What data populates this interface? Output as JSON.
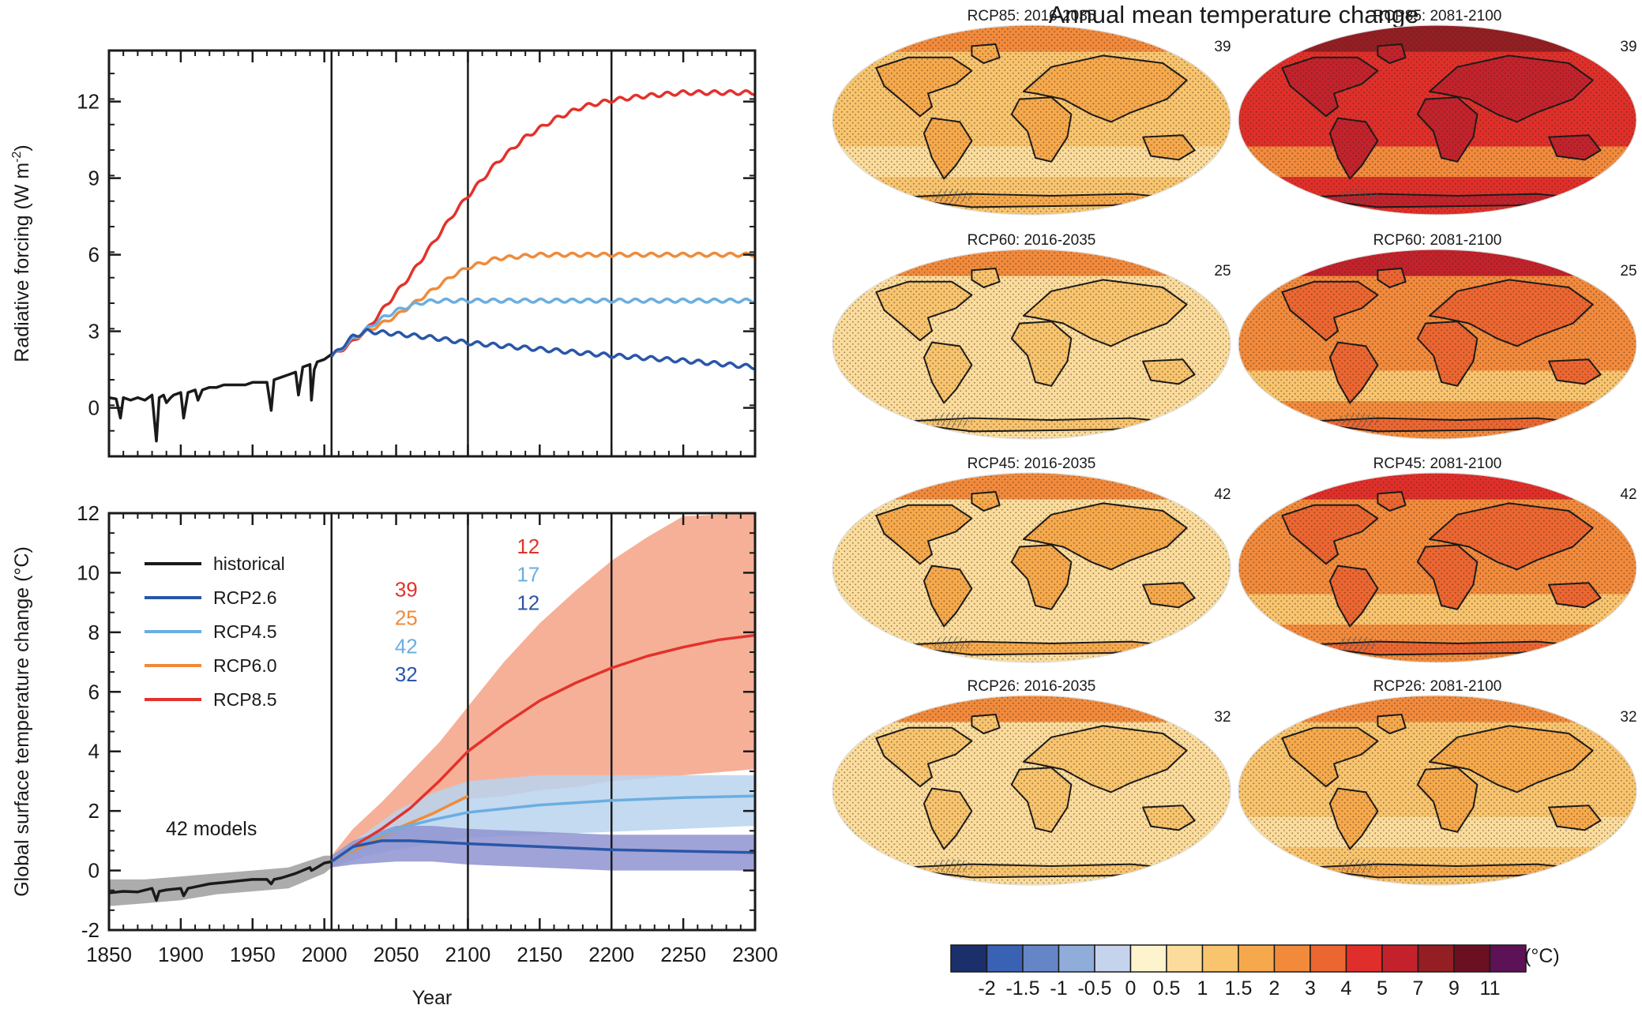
{
  "maps": {
    "title": "Annual mean temperature change",
    "panels": [
      {
        "label": "RCP85: 2016-2035",
        "count": "39",
        "level": 1.05
      },
      {
        "label": "RCP85: 2081-2100",
        "count": "39",
        "level": 4.6
      },
      {
        "label": "RCP60: 2016-2035",
        "count": "25",
        "level": 0.85
      },
      {
        "label": "RCP60: 2081-2100",
        "count": "25",
        "level": 2.6
      },
      {
        "label": "RCP45: 2016-2035",
        "count": "42",
        "level": 0.95
      },
      {
        "label": "RCP45: 2081-2100",
        "count": "42",
        "level": 2.2
      },
      {
        "label": "RCP26: 2016-2035",
        "count": "32",
        "level": 0.85
      },
      {
        "label": "RCP26: 2081-2100",
        "count": "32",
        "level": 1.0
      }
    ]
  },
  "colorbar": {
    "unit": "(°C)",
    "labels": [
      "-2",
      "-1.5",
      "-1",
      "-0.5",
      "0",
      "0.5",
      "1",
      "1.5",
      "2",
      "3",
      "4",
      "5",
      "7",
      "9",
      "11"
    ],
    "colors": [
      "#1b2f6b",
      "#3a62b4",
      "#6585c6",
      "#90acd9",
      "#c6d3ed",
      "#fdf3cd",
      "#fbdc9c",
      "#f8c46e",
      "#f6a94c",
      "#f28a3c",
      "#ec6631",
      "#e02f2a",
      "#c3222c",
      "#931e23",
      "#6b1020",
      "#5e1256"
    ]
  },
  "chart_data": [
    {
      "type": "line",
      "ylabel": "Radiative forcing (W m-2)",
      "ylabel_parts": [
        "Radiative  forcing (W m",
        "-2",
        ")"
      ],
      "xlim": [
        1850,
        2300
      ],
      "ylim": [
        -1.9,
        14
      ],
      "yticks": [
        "0",
        "3",
        "6",
        "9",
        "12"
      ],
      "ytick_values": [
        0,
        3,
        6,
        9,
        12
      ],
      "vlines": [
        2005,
        2100,
        2200
      ],
      "series": [
        {
          "key": "historical",
          "color": "#1a1a1a",
          "x": [
            1850,
            1855,
            1858,
            1860,
            1865,
            1870,
            1875,
            1880,
            1883,
            1885,
            1888,
            1890,
            1893,
            1895,
            1900,
            1902,
            1905,
            1910,
            1912,
            1915,
            1920,
            1925,
            1930,
            1935,
            1940,
            1945,
            1950,
            1955,
            1960,
            1963,
            1965,
            1970,
            1975,
            1980,
            1982,
            1985,
            1990,
            1991,
            1993,
            1995,
            2000,
            2005
          ],
          "y": [
            0.4,
            0.35,
            -0.4,
            0.4,
            0.3,
            0.4,
            0.3,
            0.5,
            -1.3,
            0.4,
            0.5,
            0.2,
            0.4,
            0.5,
            0.6,
            -0.4,
            0.6,
            0.7,
            0.3,
            0.7,
            0.8,
            0.8,
            0.9,
            0.9,
            0.9,
            0.9,
            1.0,
            1.0,
            1.0,
            -0.1,
            1.1,
            1.2,
            1.3,
            1.4,
            0.5,
            1.6,
            1.7,
            0.3,
            1.5,
            1.8,
            1.9,
            2.1
          ]
        },
        {
          "key": "rcp85",
          "color": "#e2322b",
          "x": [
            2005,
            2020,
            2030,
            2040,
            2050,
            2060,
            2070,
            2080,
            2090,
            2100,
            2120,
            2140,
            2160,
            2180,
            2200,
            2220,
            2250,
            2300
          ],
          "y": [
            2.0,
            2.6,
            3.1,
            3.8,
            4.5,
            5.2,
            6.0,
            6.8,
            7.6,
            8.3,
            9.6,
            10.6,
            11.3,
            11.8,
            12.05,
            12.2,
            12.35,
            12.35
          ]
        },
        {
          "key": "rcp60",
          "color": "#ef8b3a",
          "x": [
            2005,
            2020,
            2030,
            2040,
            2050,
            2060,
            2070,
            2080,
            2090,
            2100,
            2120,
            2150,
            2300
          ],
          "y": [
            2.0,
            2.7,
            3.0,
            3.3,
            3.6,
            4.0,
            4.4,
            4.8,
            5.2,
            5.5,
            5.85,
            6.0,
            6.0
          ]
        },
        {
          "key": "rcp45",
          "color": "#6baee0",
          "x": [
            2005,
            2020,
            2030,
            2040,
            2050,
            2060,
            2070,
            2080,
            2100,
            2150,
            2300
          ],
          "y": [
            2.0,
            2.7,
            3.1,
            3.5,
            3.8,
            4.0,
            4.15,
            4.2,
            4.2,
            4.2,
            4.2
          ]
        },
        {
          "key": "rcp26",
          "color": "#2a56a8",
          "x": [
            2005,
            2020,
            2030,
            2040,
            2050,
            2075,
            2100,
            2150,
            2200,
            2250,
            2300
          ],
          "y": [
            2.0,
            2.8,
            3.0,
            2.95,
            2.9,
            2.75,
            2.55,
            2.3,
            2.05,
            1.85,
            1.6
          ]
        }
      ]
    },
    {
      "type": "line",
      "xlabel": "Year",
      "ylabel": "Global surface temperature change (°C)",
      "xlim": [
        1850,
        2300
      ],
      "ylim": [
        -2,
        12
      ],
      "xticks": [
        "1850",
        "1900",
        "1950",
        "2000",
        "2050",
        "2100",
        "2150",
        "2200",
        "2250",
        "2300"
      ],
      "xtick_values": [
        1850,
        1900,
        1950,
        2000,
        2050,
        2100,
        2150,
        2200,
        2250,
        2300
      ],
      "yticks": [
        "-2",
        "0",
        "2",
        "4",
        "6",
        "8",
        "10",
        "12"
      ],
      "ytick_values": [
        -2,
        0,
        2,
        4,
        6,
        8,
        10,
        12
      ],
      "vlines": [
        2005,
        2100,
        2200
      ],
      "annotation": "42 models",
      "model_counts": [
        {
          "text": "39",
          "color": "#e2322b",
          "x": 2057,
          "y": 9.2
        },
        {
          "text": "25",
          "color": "#ef8b3a",
          "x": 2057,
          "y": 8.25
        },
        {
          "text": "42",
          "color": "#6baee0",
          "x": 2057,
          "y": 7.3
        },
        {
          "text": "32",
          "color": "#2a56a8",
          "x": 2057,
          "y": 6.35
        },
        {
          "text": "12",
          "color": "#e2322b",
          "x": 2142,
          "y": 10.65
        },
        {
          "text": "17",
          "color": "#6baee0",
          "x": 2142,
          "y": 9.7
        },
        {
          "text": "12",
          "color": "#2a56a8",
          "x": 2142,
          "y": 8.75
        }
      ],
      "legend": {
        "placement": "top-left",
        "entries": [
          {
            "key": "historical",
            "label": "historical",
            "color": "#1a1a1a"
          },
          {
            "key": "rcp26",
            "label": "RCP2.6",
            "color": "#2a56a8"
          },
          {
            "key": "rcp45",
            "label": "RCP4.5",
            "color": "#6baee0"
          },
          {
            "key": "rcp60",
            "label": "RCP6.0",
            "color": "#ef8b3a"
          },
          {
            "key": "rcp85",
            "label": "RCP8.5",
            "color": "#e2322b"
          }
        ]
      },
      "bands": [
        {
          "key": "rcp85",
          "color": "#f4a286",
          "x": [
            2005,
            2020,
            2040,
            2060,
            2080,
            2100,
            2125,
            2150,
            2175,
            2200,
            2225,
            2250,
            2300
          ],
          "lower": [
            0.1,
            0.5,
            1.0,
            1.5,
            2.0,
            2.4,
            2.5,
            2.7,
            2.8,
            3.0,
            3.1,
            3.2,
            3.4
          ],
          "upper": [
            0.5,
            1.4,
            2.3,
            3.3,
            4.3,
            5.5,
            7.0,
            8.3,
            9.4,
            10.4,
            11.2,
            11.9,
            12.0
          ]
        },
        {
          "key": "rcp45",
          "color": "#b8d3ee",
          "x": [
            2005,
            2030,
            2050,
            2075,
            2100,
            2150,
            2200,
            2250,
            2300
          ],
          "lower": [
            0.1,
            0.5,
            0.7,
            0.9,
            1.1,
            1.2,
            1.3,
            1.4,
            1.5
          ],
          "upper": [
            0.5,
            1.3,
            2.0,
            2.6,
            3.0,
            3.2,
            3.2,
            3.2,
            3.2
          ]
        },
        {
          "key": "rcp26",
          "color": "#8f93d0",
          "x": [
            2005,
            2020,
            2050,
            2075,
            2100,
            2150,
            2200,
            2250,
            2300
          ],
          "lower": [
            0.1,
            0.2,
            0.3,
            0.3,
            0.2,
            0.1,
            0.0,
            0.0,
            0.0
          ],
          "upper": [
            0.5,
            1.0,
            1.5,
            1.5,
            1.4,
            1.3,
            1.2,
            1.2,
            1.2
          ]
        },
        {
          "key": "historical",
          "color": "#9e9e9e",
          "x": [
            1850,
            1875,
            1900,
            1925,
            1950,
            1975,
            2000,
            2005
          ],
          "lower": [
            -1.2,
            -1.1,
            -1.0,
            -0.8,
            -0.7,
            -0.6,
            -0.1,
            0.1
          ],
          "upper": [
            -0.3,
            -0.3,
            -0.2,
            -0.1,
            0.0,
            0.1,
            0.5,
            0.5
          ]
        }
      ],
      "series": [
        {
          "key": "historical",
          "color": "#1a1a1a",
          "x": [
            1850,
            1860,
            1870,
            1880,
            1883,
            1885,
            1890,
            1900,
            1902,
            1905,
            1910,
            1920,
            1930,
            1940,
            1950,
            1960,
            1963,
            1965,
            1970,
            1980,
            1990,
            1991,
            1993,
            2000,
            2005
          ],
          "y": [
            -0.75,
            -0.7,
            -0.72,
            -0.6,
            -1.0,
            -0.7,
            -0.65,
            -0.6,
            -0.85,
            -0.6,
            -0.55,
            -0.45,
            -0.4,
            -0.35,
            -0.3,
            -0.3,
            -0.45,
            -0.3,
            -0.25,
            -0.1,
            0.1,
            0.0,
            0.05,
            0.25,
            0.3
          ]
        },
        {
          "key": "rcp85",
          "color": "#e2322b",
          "x": [
            2005,
            2020,
            2040,
            2060,
            2080,
            2100,
            2125,
            2150,
            2175,
            2200,
            2225,
            2250,
            2275,
            2300
          ],
          "y": [
            0.3,
            0.8,
            1.4,
            2.1,
            3.0,
            4.0,
            4.9,
            5.7,
            6.3,
            6.8,
            7.2,
            7.5,
            7.75,
            7.9
          ]
        },
        {
          "key": "rcp60",
          "color": "#ef8b3a",
          "x": [
            2005,
            2030,
            2050,
            2075,
            2100
          ],
          "y": [
            0.3,
            0.9,
            1.4,
            1.9,
            2.5
          ]
        },
        {
          "key": "rcp45",
          "color": "#6baee0",
          "x": [
            2005,
            2030,
            2050,
            2075,
            2100,
            2150,
            2200,
            2250,
            2300
          ],
          "y": [
            0.3,
            1.0,
            1.4,
            1.7,
            1.95,
            2.2,
            2.35,
            2.45,
            2.5
          ]
        },
        {
          "key": "rcp26",
          "color": "#2a56a8",
          "x": [
            2005,
            2020,
            2040,
            2060,
            2080,
            2100,
            2150,
            2200,
            2250,
            2300
          ],
          "y": [
            0.3,
            0.8,
            1.0,
            1.0,
            0.95,
            0.9,
            0.8,
            0.7,
            0.65,
            0.6
          ]
        }
      ]
    }
  ]
}
